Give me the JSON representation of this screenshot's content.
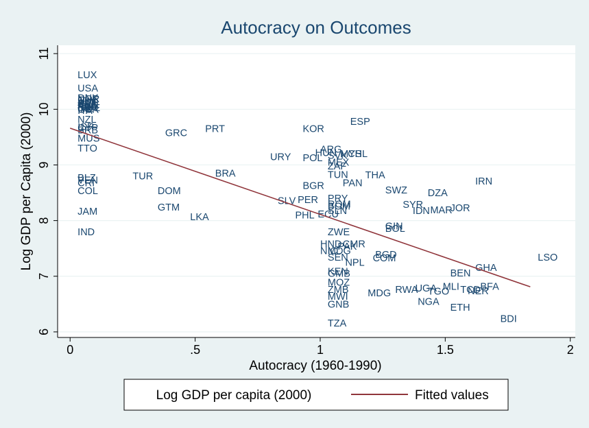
{
  "chart_data": {
    "type": "scatter",
    "title": "Autocracy on Outcomes",
    "xlabel": "Autocracy (1960-1990)",
    "ylabel": "Log GDP per Capita (2000)",
    "xlim": [
      -0.05,
      2.02
    ],
    "ylim": [
      5.9,
      11.15
    ],
    "xticks": [
      0,
      0.5,
      1,
      1.5,
      2
    ],
    "xtick_labels": [
      "0",
      ".5",
      "1",
      "1.5",
      "2"
    ],
    "yticks": [
      6,
      7,
      8,
      9,
      10,
      11
    ],
    "ytick_labels": [
      "6",
      "7",
      "8",
      "9",
      "10",
      "11"
    ],
    "grid": "horizontal",
    "legend_position": "bottom",
    "series": [
      {
        "name": "Log GDP per capita (2000)",
        "kind": "labels",
        "color": "#1a476f",
        "points": [
          {
            "label": "LUX",
            "x": 0.03,
            "y": 10.62
          },
          {
            "label": "USA",
            "x": 0.03,
            "y": 10.38
          },
          {
            "label": "DNK",
            "x": 0.03,
            "y": 10.21
          },
          {
            "label": "NOR",
            "x": 0.03,
            "y": 10.19
          },
          {
            "label": "CHE",
            "x": 0.03,
            "y": 10.17
          },
          {
            "label": "JPN",
            "x": 0.03,
            "y": 10.15
          },
          {
            "label": "AUT",
            "x": 0.03,
            "y": 10.13
          },
          {
            "label": "BEL",
            "x": 0.03,
            "y": 10.11
          },
          {
            "label": "CAN",
            "x": 0.03,
            "y": 10.1
          },
          {
            "label": "AUS",
            "x": 0.03,
            "y": 10.08
          },
          {
            "label": "FIN",
            "x": 0.03,
            "y": 10.06
          },
          {
            "label": "NLD",
            "x": 0.03,
            "y": 10.05
          },
          {
            "label": "FRA",
            "x": 0.03,
            "y": 10.04
          },
          {
            "label": "SWE",
            "x": 0.03,
            "y": 10.03
          },
          {
            "label": "IRL",
            "x": 0.03,
            "y": 10.01
          },
          {
            "label": "GBR",
            "x": 0.03,
            "y": 10.0
          },
          {
            "label": "ITA",
            "x": 0.03,
            "y": 9.98
          },
          {
            "label": "NZL",
            "x": 0.03,
            "y": 9.82
          },
          {
            "label": "ISR",
            "x": 0.03,
            "y": 9.69
          },
          {
            "label": "CYP",
            "x": 0.03,
            "y": 9.67
          },
          {
            "label": "BRB",
            "x": 0.03,
            "y": 9.63
          },
          {
            "label": "MUS",
            "x": 0.03,
            "y": 9.48
          },
          {
            "label": "TTO",
            "x": 0.03,
            "y": 9.3
          },
          {
            "label": "BLZ",
            "x": 0.03,
            "y": 8.77
          },
          {
            "label": "VEN",
            "x": 0.03,
            "y": 8.73
          },
          {
            "label": "CRI",
            "x": 0.03,
            "y": 8.68
          },
          {
            "label": "COL",
            "x": 0.03,
            "y": 8.54
          },
          {
            "label": "JAM",
            "x": 0.03,
            "y": 8.17
          },
          {
            "label": "IND",
            "x": 0.03,
            "y": 7.8
          },
          {
            "label": "GRC",
            "x": 0.38,
            "y": 9.58
          },
          {
            "label": "PRT",
            "x": 0.54,
            "y": 9.65
          },
          {
            "label": "TUR",
            "x": 0.25,
            "y": 8.8
          },
          {
            "label": "DOM",
            "x": 0.35,
            "y": 8.54
          },
          {
            "label": "GTM",
            "x": 0.35,
            "y": 8.24
          },
          {
            "label": "LKA",
            "x": 0.48,
            "y": 8.07
          },
          {
            "label": "BRA",
            "x": 0.58,
            "y": 8.85
          },
          {
            "label": "URY",
            "x": 0.8,
            "y": 9.15
          },
          {
            "label": "KOR",
            "x": 0.93,
            "y": 9.65
          },
          {
            "label": "ESP",
            "x": 1.12,
            "y": 9.78
          },
          {
            "label": "HUN",
            "x": 0.98,
            "y": 9.22
          },
          {
            "label": "ARG",
            "x": 1.0,
            "y": 9.28
          },
          {
            "label": "POL",
            "x": 0.93,
            "y": 9.13
          },
          {
            "label": "SVK",
            "x": 1.03,
            "y": 9.17
          },
          {
            "label": "MYS",
            "x": 1.08,
            "y": 9.2
          },
          {
            "label": "CHL",
            "x": 1.11,
            "y": 9.2
          },
          {
            "label": "MEX",
            "x": 1.03,
            "y": 9.05
          },
          {
            "label": "ZAF",
            "x": 1.03,
            "y": 8.98
          },
          {
            "label": "TUN",
            "x": 1.03,
            "y": 8.83
          },
          {
            "label": "THA",
            "x": 1.18,
            "y": 8.82
          },
          {
            "label": "PAN",
            "x": 1.09,
            "y": 8.68
          },
          {
            "label": "BGR",
            "x": 0.93,
            "y": 8.63
          },
          {
            "label": "SLV",
            "x": 0.83,
            "y": 8.36
          },
          {
            "label": "PER",
            "x": 0.91,
            "y": 8.38
          },
          {
            "label": "PRY",
            "x": 1.03,
            "y": 8.4
          },
          {
            "label": "ROM",
            "x": 1.03,
            "y": 8.3
          },
          {
            "label": "BOM",
            "x": 1.03,
            "y": 8.26
          },
          {
            "label": "SLN",
            "x": 1.03,
            "y": 8.18
          },
          {
            "label": "PHL",
            "x": 0.9,
            "y": 8.1
          },
          {
            "label": "ECU",
            "x": 0.99,
            "y": 8.12
          },
          {
            "label": "SWZ",
            "x": 1.26,
            "y": 8.55
          },
          {
            "label": "DZA",
            "x": 1.43,
            "y": 8.5
          },
          {
            "label": "IRN",
            "x": 1.62,
            "y": 8.71
          },
          {
            "label": "SYR",
            "x": 1.33,
            "y": 8.29
          },
          {
            "label": "IDN",
            "x": 1.37,
            "y": 8.18
          },
          {
            "label": "MAR",
            "x": 1.44,
            "y": 8.19
          },
          {
            "label": "JOR",
            "x": 1.52,
            "y": 8.23
          },
          {
            "label": "GIN",
            "x": 1.26,
            "y": 7.9
          },
          {
            "label": "BOL",
            "x": 1.26,
            "y": 7.86
          },
          {
            "label": "ZWE",
            "x": 1.03,
            "y": 7.8
          },
          {
            "label": "HND",
            "x": 1.0,
            "y": 7.58
          },
          {
            "label": "CMR",
            "x": 1.09,
            "y": 7.58
          },
          {
            "label": "PAK",
            "x": 1.07,
            "y": 7.54
          },
          {
            "label": "NIC",
            "x": 1.0,
            "y": 7.46
          },
          {
            "label": "MDG",
            "x": 1.03,
            "y": 7.46
          },
          {
            "label": "SEN",
            "x": 1.03,
            "y": 7.34
          },
          {
            "label": "NPL",
            "x": 1.1,
            "y": 7.25
          },
          {
            "label": "BGD",
            "x": 1.22,
            "y": 7.39
          },
          {
            "label": "COM",
            "x": 1.21,
            "y": 7.33
          },
          {
            "label": "KEN",
            "x": 1.03,
            "y": 7.09
          },
          {
            "label": "GMB",
            "x": 1.03,
            "y": 7.05
          },
          {
            "label": "MOZ",
            "x": 1.03,
            "y": 6.89
          },
          {
            "label": "ZMB",
            "x": 1.03,
            "y": 6.76
          },
          {
            "label": "MWI",
            "x": 1.03,
            "y": 6.64
          },
          {
            "label": "GNB",
            "x": 1.03,
            "y": 6.5
          },
          {
            "label": "TZA",
            "x": 1.03,
            "y": 6.16
          },
          {
            "label": "MDG",
            "x": 1.19,
            "y": 6.7
          },
          {
            "label": "RWA",
            "x": 1.3,
            "y": 6.76
          },
          {
            "label": "UGA",
            "x": 1.38,
            "y": 6.79
          },
          {
            "label": "TGO",
            "x": 1.43,
            "y": 6.73
          },
          {
            "label": "MLI",
            "x": 1.49,
            "y": 6.82
          },
          {
            "label": "NGA",
            "x": 1.39,
            "y": 6.55
          },
          {
            "label": "BEN",
            "x": 1.52,
            "y": 7.06
          },
          {
            "label": "TCD",
            "x": 1.56,
            "y": 6.76
          },
          {
            "label": "NER",
            "x": 1.59,
            "y": 6.74
          },
          {
            "label": "BFA",
            "x": 1.64,
            "y": 6.82
          },
          {
            "label": "GHA",
            "x": 1.62,
            "y": 7.16
          },
          {
            "label": "ETH",
            "x": 1.52,
            "y": 6.44
          },
          {
            "label": "BDI",
            "x": 1.72,
            "y": 6.24
          },
          {
            "label": "LSO",
            "x": 1.87,
            "y": 7.34
          }
        ]
      },
      {
        "name": "Fitted values",
        "kind": "line",
        "color": "#90353b",
        "x": [
          0.0,
          1.84
        ],
        "y": [
          9.66,
          6.81
        ]
      }
    ]
  }
}
